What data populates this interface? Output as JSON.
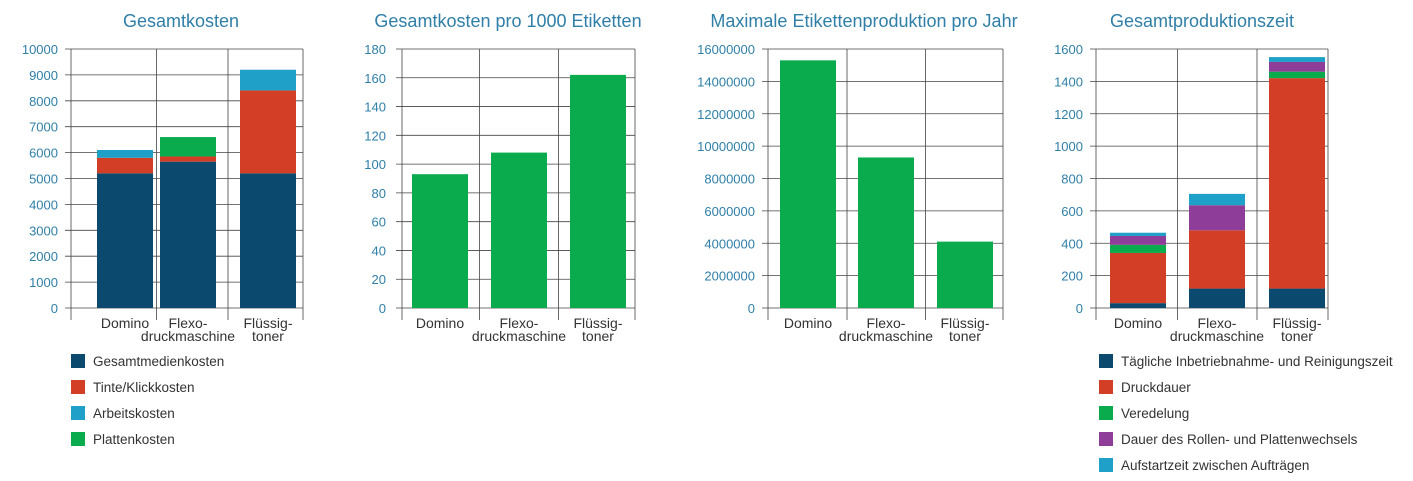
{
  "chart_data": [
    {
      "type": "bar",
      "stacked": true,
      "title": "Gesamtkosten",
      "categories": [
        "Domino",
        "Flexo-\ndruckmaschine",
        "Flüssig-\ntoner"
      ],
      "ylim": [
        0,
        10000
      ],
      "yticks": [
        0,
        1000,
        2000,
        3000,
        4000,
        5000,
        6000,
        7000,
        8000,
        9000,
        10000
      ],
      "grid": true,
      "legend": "bottom",
      "series": [
        {
          "name": "Gesamtmedienkosten",
          "color": "#0b4a6e",
          "values": [
            5200,
            5650,
            5200
          ]
        },
        {
          "name": "Tinte/Klickkosten",
          "color": "#d33f26",
          "values": [
            600,
            200,
            3200
          ]
        },
        {
          "name": "Arbeitskosten",
          "color": "#1fa0c8",
          "values": [
            300,
            0,
            800
          ]
        },
        {
          "name": "Plattenkosten",
          "color": "#0aab4d",
          "values": [
            0,
            750,
            0
          ]
        }
      ]
    },
    {
      "type": "bar",
      "title": "Gesamtkosten pro 1000 Etiketten",
      "categories": [
        "Domino",
        "Flexo-\ndruckmaschine",
        "Flüssig-\ntoner"
      ],
      "ylim": [
        0,
        180
      ],
      "yticks": [
        0,
        20,
        40,
        60,
        80,
        100,
        120,
        140,
        160,
        180
      ],
      "grid": true,
      "series": [
        {
          "color": "#0aab4d",
          "values": [
            93,
            108,
            162
          ]
        }
      ]
    },
    {
      "type": "bar",
      "title": "Maximale Etikettenproduktion pro Jahr",
      "categories": [
        "Domino",
        "Flexo-\ndruckmaschine",
        "Flüssig-\ntoner"
      ],
      "ylim": [
        0,
        16000000
      ],
      "yticks": [
        0,
        2000000,
        4000000,
        6000000,
        8000000,
        10000000,
        12000000,
        14000000,
        16000000
      ],
      "grid": true,
      "series": [
        {
          "color": "#0aab4d",
          "values": [
            15300000,
            9300000,
            4100000
          ]
        }
      ]
    },
    {
      "type": "bar",
      "stacked": true,
      "title": "Gesamtproduktionszeit",
      "categories": [
        "Domino",
        "Flexo-\ndruckmaschine",
        "Flüssig-\ntoner"
      ],
      "ylim": [
        0,
        1600
      ],
      "yticks": [
        0,
        200,
        400,
        600,
        800,
        1000,
        1200,
        1400,
        1600
      ],
      "grid": true,
      "legend": "bottom",
      "series": [
        {
          "name": "Tägliche Inbetriebnahme- und Reinigungszeit",
          "color": "#0b4a6e",
          "values": [
            30,
            120,
            120
          ]
        },
        {
          "name": "Druckdauer",
          "color": "#d33f26",
          "values": [
            310,
            360,
            1300
          ]
        },
        {
          "name": "Veredelung",
          "color": "#0aab4d",
          "values": [
            50,
            0,
            40
          ]
        },
        {
          "name": "Dauer des Rollen- und Plattenwechsels",
          "color": "#8e3e99",
          "values": [
            55,
            155,
            60
          ]
        },
        {
          "name": "Aufstartzeit zwischen Aufträgen",
          "color": "#1fa0c8",
          "values": [
            20,
            70,
            30
          ]
        }
      ]
    }
  ]
}
